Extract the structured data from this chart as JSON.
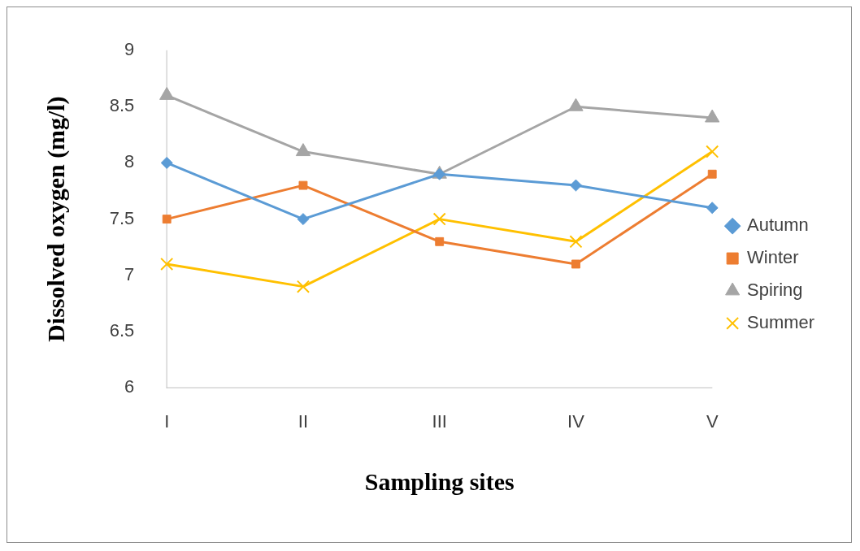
{
  "chart_data": {
    "type": "line",
    "xlabel": "Sampling sites",
    "ylabel": "Dissolved oxygen (mg/l)",
    "categories": [
      "I",
      "II",
      "III",
      "IV",
      "V"
    ],
    "series": [
      {
        "name": "Autumn",
        "color": "#5b9bd5",
        "marker": "diamond",
        "values": [
          8,
          7.5,
          7.9,
          7.8,
          7.6
        ]
      },
      {
        "name": "Winter",
        "color": "#ed7d31",
        "marker": "square",
        "values": [
          7.5,
          7.8,
          7.3,
          7.1,
          7.9
        ]
      },
      {
        "name": "Spiring",
        "color": "#a5a5a5",
        "marker": "triangle",
        "values": [
          8.6,
          8.1,
          7.9,
          8.5,
          8.4
        ]
      },
      {
        "name": "Summer",
        "color": "#ffc000",
        "marker": "cross",
        "values": [
          7.1,
          6.9,
          7.5,
          7.3,
          8.1
        ]
      }
    ],
    "ylim": [
      6,
      9
    ],
    "yticks": [
      6,
      6.5,
      7,
      7.5,
      8,
      8.5,
      9
    ],
    "grid": false,
    "legend": "right"
  }
}
